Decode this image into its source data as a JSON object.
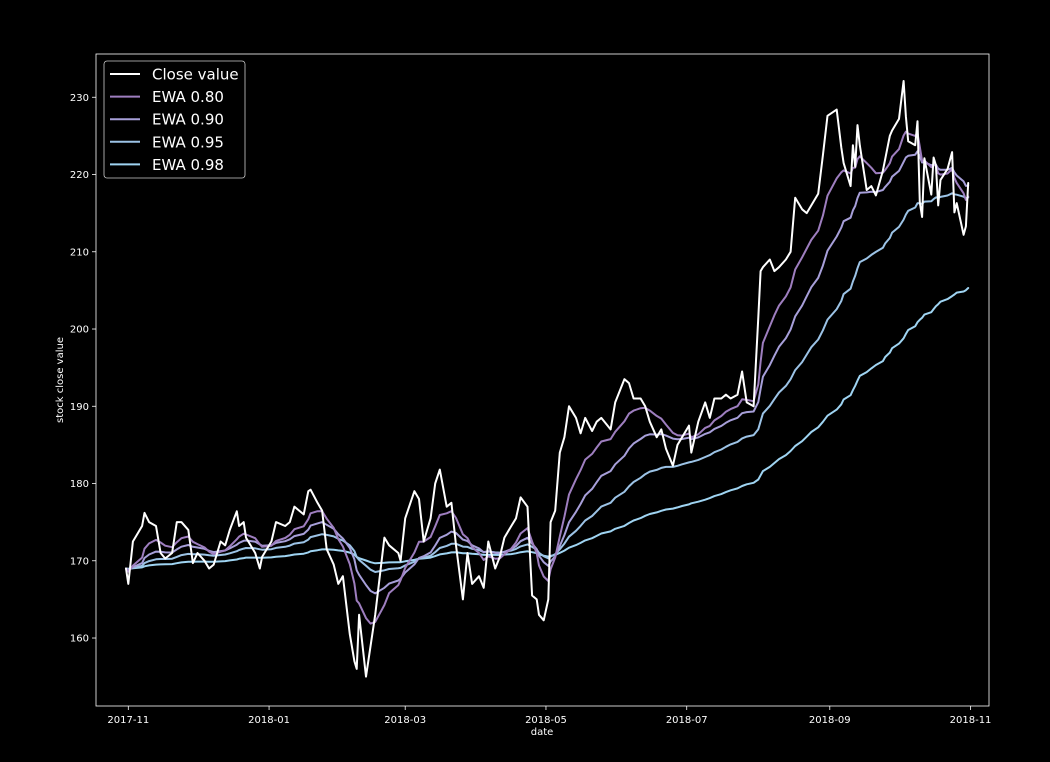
{
  "chart_data": {
    "type": "line",
    "title": "",
    "xlabel": "date",
    "ylabel": "stock close value",
    "x_ticks": [
      "2017-11",
      "2018-01",
      "2018-03",
      "2018-05",
      "2018-07",
      "2018-09",
      "2018-11"
    ],
    "y_ticks": [
      160,
      170,
      180,
      190,
      200,
      210,
      220,
      230
    ],
    "xlim": [
      "2017-10-18",
      "2018-11-09"
    ],
    "ylim": [
      151.2,
      235.6
    ],
    "grid": false,
    "legend_position": "top-left",
    "background": "#000000",
    "series": [
      {
        "name": "Close value",
        "color": "#ffffff",
        "points": [
          [
            "2017-10-31",
            169.0
          ],
          [
            "2017-11-01",
            167.0
          ],
          [
            "2017-11-03",
            172.5
          ],
          [
            "2017-11-07",
            174.5
          ],
          [
            "2017-11-08",
            176.2
          ],
          [
            "2017-11-10",
            175.0
          ],
          [
            "2017-11-13",
            174.5
          ],
          [
            "2017-11-15",
            171.0
          ],
          [
            "2017-11-17",
            170.3
          ],
          [
            "2017-11-20",
            171.0
          ],
          [
            "2017-11-22",
            175.0
          ],
          [
            "2017-11-24",
            175.0
          ],
          [
            "2017-11-27",
            174.0
          ],
          [
            "2017-11-29",
            169.7
          ],
          [
            "2017-12-01",
            171.0
          ],
          [
            "2017-12-04",
            170.0
          ],
          [
            "2017-12-06",
            169.0
          ],
          [
            "2017-12-08",
            169.5
          ],
          [
            "2017-12-11",
            172.5
          ],
          [
            "2017-12-13",
            172.0
          ],
          [
            "2017-12-15",
            174.0
          ],
          [
            "2017-12-18",
            176.4
          ],
          [
            "2017-12-19",
            174.5
          ],
          [
            "2017-12-21",
            175.0
          ],
          [
            "2017-12-22",
            173.0
          ],
          [
            "2017-12-26",
            171.0
          ],
          [
            "2017-12-28",
            169.0
          ],
          [
            "2017-12-29",
            170.5
          ],
          [
            "2018-01-02",
            172.5
          ],
          [
            "2018-01-04",
            175.0
          ],
          [
            "2018-01-08",
            174.5
          ],
          [
            "2018-01-10",
            175.0
          ],
          [
            "2018-01-12",
            177.0
          ],
          [
            "2018-01-16",
            176.0
          ],
          [
            "2018-01-18",
            179.0
          ],
          [
            "2018-01-19",
            179.2
          ],
          [
            "2018-01-22",
            177.5
          ],
          [
            "2018-01-24",
            176.5
          ],
          [
            "2018-01-26",
            171.5
          ],
          [
            "2018-01-29",
            169.5
          ],
          [
            "2018-01-31",
            167.0
          ],
          [
            "2018-02-02",
            168.0
          ],
          [
            "2018-02-05",
            160.5
          ],
          [
            "2018-02-07",
            157.0
          ],
          [
            "2018-02-08",
            156.0
          ],
          [
            "2018-02-09",
            163.0
          ],
          [
            "2018-02-12",
            155.0
          ],
          [
            "2018-02-14",
            159.0
          ],
          [
            "2018-02-16",
            163.0
          ],
          [
            "2018-02-20",
            173.0
          ],
          [
            "2018-02-22",
            172.0
          ],
          [
            "2018-02-26",
            171.0
          ],
          [
            "2018-02-27",
            170.0
          ],
          [
            "2018-03-01",
            175.5
          ],
          [
            "2018-03-05",
            179.0
          ],
          [
            "2018-03-07",
            178.0
          ],
          [
            "2018-03-09",
            172.5
          ],
          [
            "2018-03-12",
            175.5
          ],
          [
            "2018-03-14",
            180.0
          ],
          [
            "2018-03-16",
            181.8
          ],
          [
            "2018-03-19",
            177.0
          ],
          [
            "2018-03-21",
            177.5
          ],
          [
            "2018-03-23",
            172.0
          ],
          [
            "2018-03-26",
            165.0
          ],
          [
            "2018-03-28",
            171.0
          ],
          [
            "2018-03-30",
            167.0
          ],
          [
            "2018-04-02",
            168.0
          ],
          [
            "2018-04-04",
            166.5
          ],
          [
            "2018-04-06",
            172.5
          ],
          [
            "2018-04-09",
            169.0
          ],
          [
            "2018-04-11",
            170.5
          ],
          [
            "2018-04-13",
            173.0
          ],
          [
            "2018-04-16",
            174.5
          ],
          [
            "2018-04-18",
            175.5
          ],
          [
            "2018-04-20",
            178.2
          ],
          [
            "2018-04-23",
            177.0
          ],
          [
            "2018-04-25",
            165.5
          ],
          [
            "2018-04-27",
            165.0
          ],
          [
            "2018-04-28",
            163.0
          ],
          [
            "2018-04-30",
            162.3
          ],
          [
            "2018-05-02",
            165.0
          ],
          [
            "2018-05-03",
            175.0
          ],
          [
            "2018-05-05",
            176.5
          ],
          [
            "2018-05-07",
            184.0
          ],
          [
            "2018-05-09",
            186.0
          ],
          [
            "2018-05-11",
            190.0
          ],
          [
            "2018-05-14",
            188.5
          ],
          [
            "2018-05-16",
            186.5
          ],
          [
            "2018-05-18",
            188.5
          ],
          [
            "2018-05-21",
            186.8
          ],
          [
            "2018-05-23",
            188.0
          ],
          [
            "2018-05-25",
            188.5
          ],
          [
            "2018-05-29",
            187.0
          ],
          [
            "2018-05-31",
            190.5
          ],
          [
            "2018-06-04",
            193.5
          ],
          [
            "2018-06-06",
            193.0
          ],
          [
            "2018-06-08",
            191.0
          ],
          [
            "2018-06-11",
            191.0
          ],
          [
            "2018-06-13",
            190.0
          ],
          [
            "2018-06-15",
            188.0
          ],
          [
            "2018-06-18",
            186.0
          ],
          [
            "2018-06-20",
            187.0
          ],
          [
            "2018-06-22",
            184.5
          ],
          [
            "2018-06-25",
            182.3
          ],
          [
            "2018-06-27",
            185.0
          ],
          [
            "2018-06-29",
            186.0
          ],
          [
            "2018-07-02",
            187.5
          ],
          [
            "2018-07-03",
            184.0
          ],
          [
            "2018-07-06",
            188.0
          ],
          [
            "2018-07-09",
            190.5
          ],
          [
            "2018-07-11",
            188.5
          ],
          [
            "2018-07-13",
            191.0
          ],
          [
            "2018-07-16",
            191.0
          ],
          [
            "2018-07-18",
            191.5
          ],
          [
            "2018-07-20",
            191.0
          ],
          [
            "2018-07-23",
            191.5
          ],
          [
            "2018-07-25",
            194.5
          ],
          [
            "2018-07-27",
            190.5
          ],
          [
            "2018-07-30",
            190.0
          ],
          [
            "2018-08-01",
            201.5
          ],
          [
            "2018-08-02",
            207.5
          ],
          [
            "2018-08-03",
            208.0
          ],
          [
            "2018-08-06",
            209.0
          ],
          [
            "2018-08-08",
            207.5
          ],
          [
            "2018-08-10",
            208.0
          ],
          [
            "2018-08-13",
            209.0
          ],
          [
            "2018-08-15",
            210.0
          ],
          [
            "2018-08-17",
            217.0
          ],
          [
            "2018-08-20",
            215.5
          ],
          [
            "2018-08-22",
            215.0
          ],
          [
            "2018-08-24",
            216.0
          ],
          [
            "2018-08-27",
            217.5
          ],
          [
            "2018-08-29",
            222.5
          ],
          [
            "2018-08-31",
            227.6
          ],
          [
            "2018-09-04",
            228.4
          ],
          [
            "2018-09-06",
            223.5
          ],
          [
            "2018-09-07",
            221.5
          ],
          [
            "2018-09-10",
            218.5
          ],
          [
            "2018-09-11",
            223.8
          ],
          [
            "2018-09-12",
            221.0
          ],
          [
            "2018-09-13",
            226.4
          ],
          [
            "2018-09-14",
            223.8
          ],
          [
            "2018-09-17",
            218.0
          ],
          [
            "2018-09-19",
            218.5
          ],
          [
            "2018-09-21",
            217.3
          ],
          [
            "2018-09-24",
            220.5
          ],
          [
            "2018-09-25",
            222.0
          ],
          [
            "2018-09-27",
            225.0
          ],
          [
            "2018-09-28",
            225.7
          ],
          [
            "2018-10-01",
            227.2
          ],
          [
            "2018-10-03",
            232.1
          ],
          [
            "2018-10-04",
            227.5
          ],
          [
            "2018-10-05",
            224.3
          ],
          [
            "2018-10-08",
            223.8
          ],
          [
            "2018-10-09",
            226.9
          ],
          [
            "2018-10-10",
            216.4
          ],
          [
            "2018-10-11",
            214.5
          ],
          [
            "2018-10-12",
            222.1
          ],
          [
            "2018-10-15",
            217.4
          ],
          [
            "2018-10-16",
            222.2
          ],
          [
            "2018-10-17",
            221.2
          ],
          [
            "2018-10-18",
            216.0
          ],
          [
            "2018-10-19",
            219.3
          ],
          [
            "2018-10-22",
            220.7
          ],
          [
            "2018-10-24",
            222.9
          ],
          [
            "2018-10-25",
            215.1
          ],
          [
            "2018-10-26",
            216.3
          ],
          [
            "2018-10-29",
            212.2
          ],
          [
            "2018-10-30",
            213.3
          ],
          [
            "2018-10-31",
            218.9
          ]
        ]
      },
      {
        "name": "EWA 0.80",
        "color": "#9e7ebf",
        "smoothing": 0.8
      },
      {
        "name": "EWA 0.90",
        "color": "#a79fd9",
        "smoothing": 0.9
      },
      {
        "name": "EWA 0.95",
        "color": "#9cc3e6",
        "smoothing": 0.95
      },
      {
        "name": "EWA 0.98",
        "color": "#9fd4f2",
        "smoothing": 0.98
      }
    ]
  }
}
